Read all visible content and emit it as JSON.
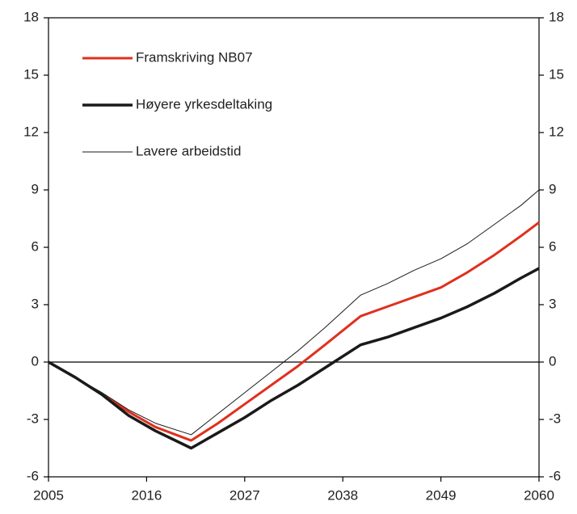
{
  "chart_data": {
    "type": "line",
    "x": [
      2005,
      2008,
      2011,
      2014,
      2017,
      2021,
      2024,
      2027,
      2030,
      2033,
      2036,
      2040,
      2043,
      2046,
      2049,
      2052,
      2055,
      2058,
      2060
    ],
    "series": [
      {
        "name": "Framskriving NB07",
        "color": "#e0301e",
        "width": 3,
        "values": [
          0,
          -0.8,
          -1.7,
          -2.6,
          -3.4,
          -4.1,
          -3.2,
          -2.2,
          -1.2,
          -0.2,
          0.9,
          2.4,
          2.9,
          3.4,
          3.9,
          4.7,
          5.6,
          6.6,
          7.3
        ]
      },
      {
        "name": "Høyere yrkesdeltaking",
        "color": "#1a1a1a",
        "width": 3.5,
        "values": [
          0,
          -0.8,
          -1.7,
          -2.8,
          -3.6,
          -4.5,
          -3.7,
          -2.9,
          -2.0,
          -1.2,
          -0.3,
          0.9,
          1.3,
          1.8,
          2.3,
          2.9,
          3.6,
          4.4,
          4.9
        ]
      },
      {
        "name": "Lavere arbeidstid",
        "color": "#1a1a1a",
        "width": 1,
        "values": [
          0,
          -0.8,
          -1.6,
          -2.5,
          -3.2,
          -3.8,
          -2.7,
          -1.6,
          -0.5,
          0.6,
          1.8,
          3.5,
          4.1,
          4.8,
          5.4,
          6.2,
          7.2,
          8.2,
          9.0
        ]
      }
    ],
    "xlim": [
      2005,
      2060
    ],
    "xticks": [
      2005,
      2016,
      2027,
      2038,
      2049,
      2060
    ],
    "ylim": [
      -6,
      18
    ],
    "yticks": [
      -6,
      -3,
      0,
      3,
      6,
      9,
      12,
      15,
      18
    ],
    "y2lim": [
      -6,
      18
    ],
    "y2ticks": [
      -6,
      -3,
      0,
      3,
      6,
      9,
      12,
      15,
      18
    ],
    "legend": "upper left"
  }
}
